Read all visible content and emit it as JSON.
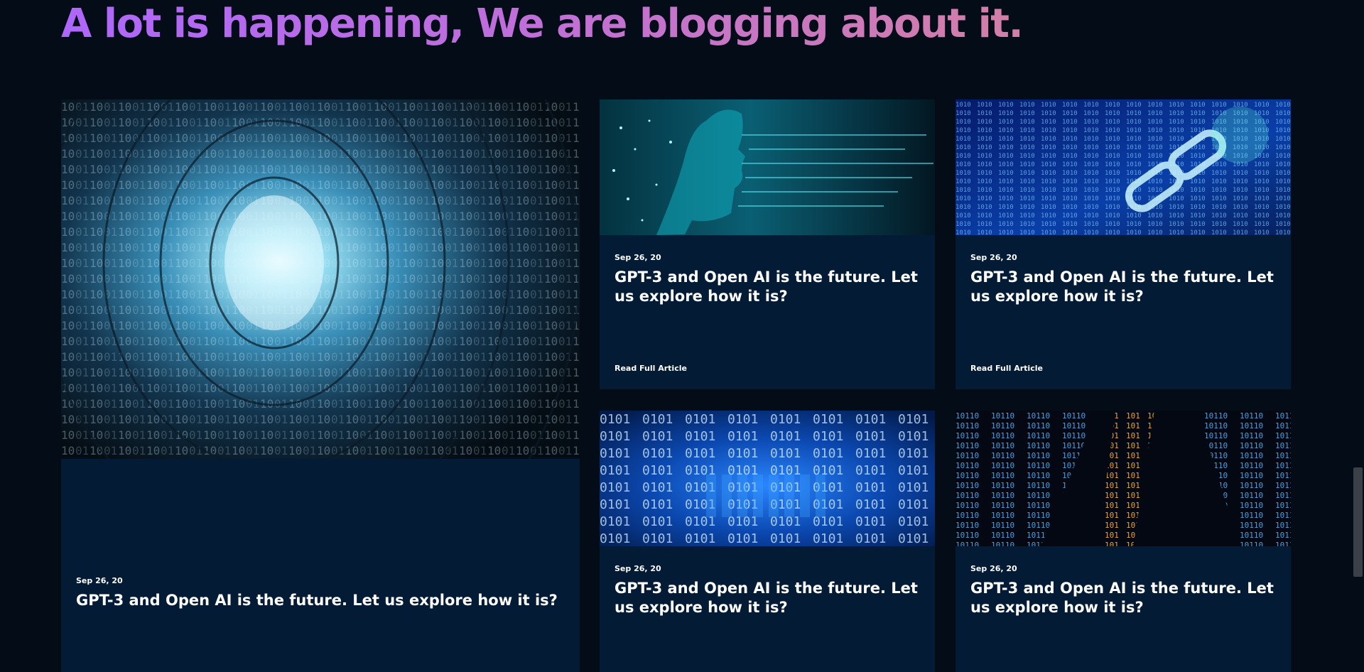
{
  "headline": "A lot is happening, We are blogging about it.",
  "colors": {
    "background": "#040c18",
    "card_background": "#031b34",
    "headline_gradient_start": "#ae67fa",
    "headline_gradient_end": "#d27fa8"
  },
  "cards": [
    {
      "image_icon": "binary-tunnel-image",
      "date": "Sep 26, 20",
      "title": "GPT-3 and Open AI is the future. Let us explore how it is?",
      "read_more": ""
    },
    {
      "image_icon": "ai-circuit-head-image",
      "date": "Sep 26, 20",
      "title": "GPT-3 and Open AI is the future. Let us explore how it is?",
      "read_more": "Read Full Article"
    },
    {
      "image_icon": "binary-chain-image",
      "date": "Sep 26, 20",
      "title": "GPT-3 and Open AI is the future. Let us explore how it is?",
      "read_more": "Read Full Article"
    },
    {
      "image_icon": "blue-binary-grid-image",
      "date": "Sep 26, 20",
      "title": "GPT-3 and Open AI is the future. Let us explore how it is?",
      "read_more": ""
    },
    {
      "image_icon": "binary-perspective-image",
      "date": "Sep 26, 20",
      "title": "GPT-3 and Open AI is the future. Let us explore how it is?",
      "read_more": ""
    }
  ]
}
